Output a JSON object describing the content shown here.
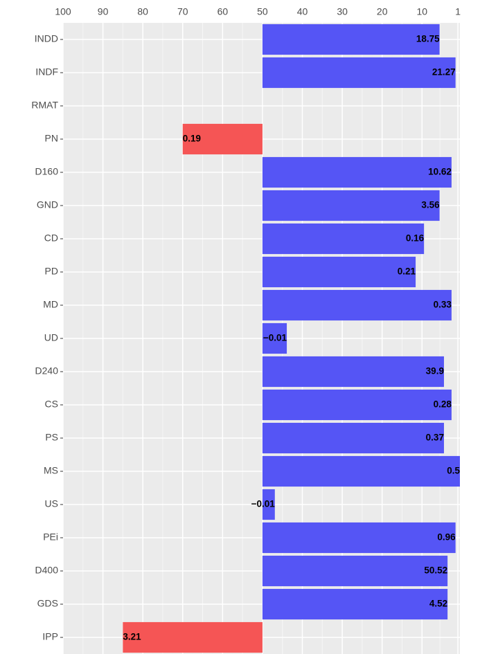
{
  "chart_data": {
    "type": "bar",
    "orientation": "horizontal",
    "categories": [
      "INDD",
      "INDF",
      "RMAT",
      "PN",
      "D160",
      "GND",
      "CD",
      "PD",
      "MD",
      "UD",
      "D240",
      "CS",
      "PS",
      "MS",
      "US",
      "PEi",
      "D400",
      "GDS",
      "IPP"
    ],
    "values": [
      5.6,
      1.6,
      null,
      70,
      2.6,
      5.6,
      9.5,
      11.6,
      2.6,
      43.9,
      4.5,
      2.6,
      4.5,
      0.5,
      46.9,
      1.6,
      3.6,
      3.6,
      85
    ],
    "annotations": [
      "18.75",
      "21.27",
      null,
      "0.19",
      "10.62",
      "3.56",
      "0.16",
      "0.21",
      "0.33",
      "−0.01",
      "39.9",
      "0.28",
      "0.37",
      "0.5",
      "−0.01",
      "0.96",
      "50.52",
      "4.52",
      "3.21"
    ],
    "bar_base": 50,
    "colors": [
      "#5555f5",
      "#5555f5",
      null,
      "#f55555",
      "#5555f5",
      "#5555f5",
      "#5555f5",
      "#5555f5",
      "#5555f5",
      "#5555f5",
      "#5555f5",
      "#5555f5",
      "#5555f5",
      "#5555f5",
      "#5555f5",
      "#5555f5",
      "#5555f5",
      "#5555f5",
      "#f55555"
    ],
    "xlim": [
      100,
      0.5
    ],
    "xticks": [
      100,
      90,
      80,
      70,
      60,
      50,
      40,
      30,
      20,
      10,
      1
    ],
    "grid": true
  }
}
